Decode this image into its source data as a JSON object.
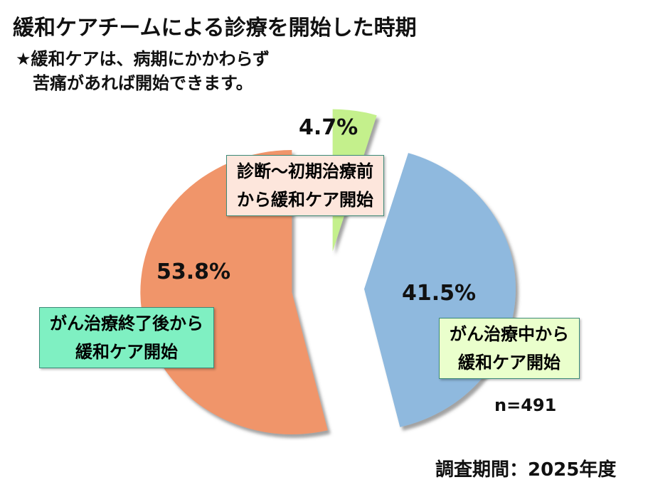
{
  "chart_data": {
    "type": "pie",
    "title": "緩和ケアチームによる診療を開始した時期",
    "subtitle": "★緩和ケアは、病期にかかわらず\n　苦痛があれば開始できます。",
    "categories": [
      "診断～初期治療前\nから緩和ケア開始",
      "がん治療中から\n緩和ケア開始",
      "がん治療終了後から\n緩和ケア開始"
    ],
    "values": [
      4.7,
      41.5,
      53.8
    ],
    "value_labels": [
      "4.7%",
      "41.5%",
      "53.8%"
    ],
    "colors": [
      "#c4f08c",
      "#8fb9de",
      "#f0956a"
    ],
    "note": "n=491",
    "footer": "調査期間：2025年度"
  }
}
